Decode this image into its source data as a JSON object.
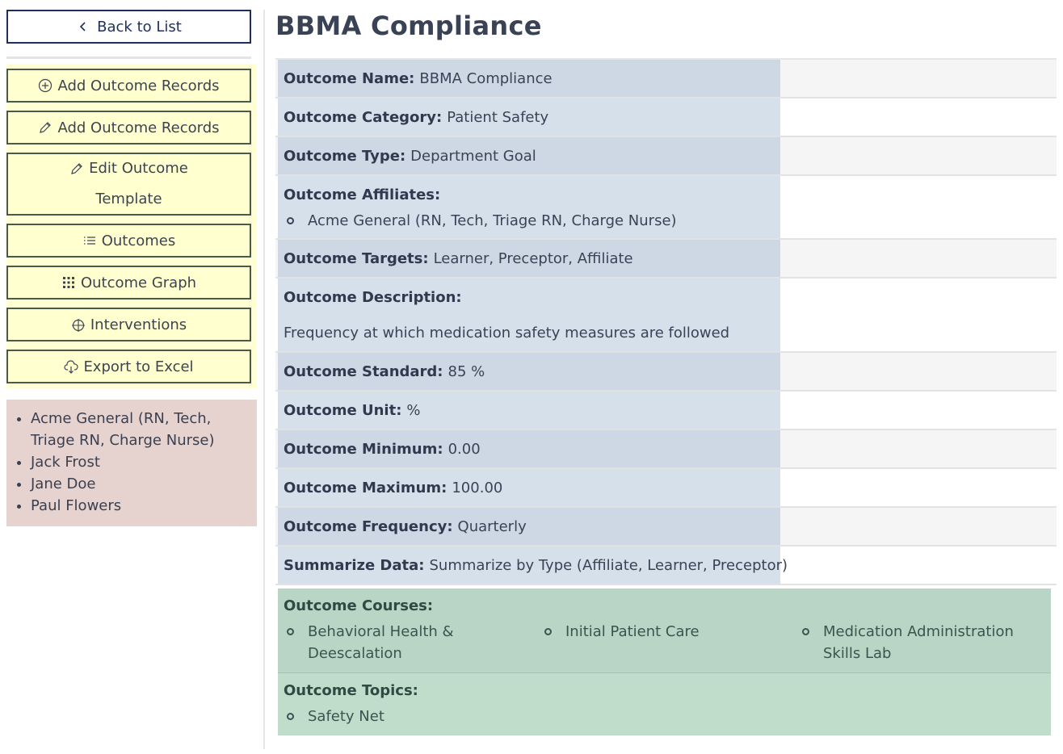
{
  "sidebar": {
    "back_label": "Back to List",
    "actions": [
      {
        "label": "Add Outcome Records",
        "icon": "plus-circle-icon"
      },
      {
        "label": "Add Outcome Records",
        "icon": "pencil-icon"
      },
      {
        "label_line1": "Edit Outcome",
        "label_line2": "Template",
        "icon": "pencil-icon"
      },
      {
        "label": "Outcomes",
        "icon": "list-icon"
      },
      {
        "label": "Outcome Graph",
        "icon": "grid-dots-icon"
      },
      {
        "label": "Interventions",
        "icon": "crosshair-icon"
      },
      {
        "label": "Export to Excel",
        "icon": "cloud-download-icon"
      }
    ],
    "people": [
      "Acme General (RN, Tech, Triage RN, Charge Nurse)",
      "Jack Frost",
      "Jane Doe",
      "Paul Flowers"
    ]
  },
  "main": {
    "title": "BBMA Compliance",
    "fields": {
      "name": {
        "label": "Outcome Name:",
        "value": "BBMA Compliance"
      },
      "category": {
        "label": "Outcome Category:",
        "value": "Patient Safety"
      },
      "type": {
        "label": "Outcome Type:",
        "value": "Department Goal"
      },
      "affiliates": {
        "label": "Outcome Affiliates:",
        "items": [
          "Acme General (RN, Tech, Triage RN, Charge Nurse)"
        ]
      },
      "targets": {
        "label": "Outcome Targets:",
        "value": "Learner, Preceptor, Affiliate"
      },
      "description": {
        "label": "Outcome Description:",
        "value": "Frequency at which medication safety measures are followed"
      },
      "standard": {
        "label": "Outcome Standard:",
        "value": "85 %"
      },
      "unit": {
        "label": "Outcome Unit:",
        "value": "%"
      },
      "minimum": {
        "label": "Outcome Minimum:",
        "value": "0.00"
      },
      "maximum": {
        "label": "Outcome Maximum:",
        "value": "100.00"
      },
      "frequency": {
        "label": "Outcome Frequency:",
        "value": "Quarterly"
      },
      "summarize": {
        "label": "Summarize Data:",
        "value": "Summarize by Type (Affiliate, Learner, Preceptor)"
      }
    },
    "courses": {
      "label": "Outcome Courses:",
      "items": [
        "Behavioral Health & Deescalation",
        "Initial Patient Care",
        "Medication Administration Skills Lab"
      ]
    },
    "topics": {
      "label": "Outcome Topics:",
      "items": [
        "Safety Net"
      ]
    }
  }
}
